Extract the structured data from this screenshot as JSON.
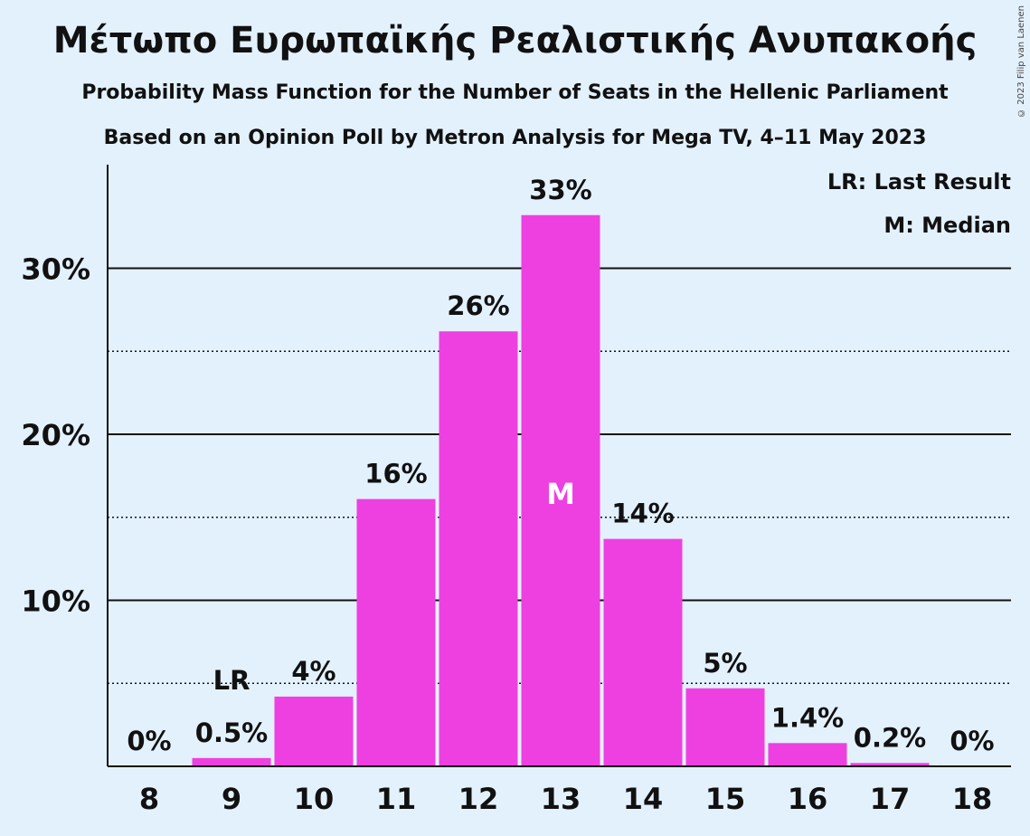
{
  "header": {
    "title": "Μέτωπο Ευρωπαϊκής Ρεαλιστικής Ανυπακοής",
    "subtitle1": "Probability Mass Function for the Number of Seats in the Hellenic Parliament",
    "subtitle2": "Based on an Opinion Poll by Metron Analysis for Mega TV, 4–11 May 2023",
    "copyright": "© 2023 Filip van Laenen"
  },
  "legend": {
    "lr": "LR: Last Result",
    "m": "M: Median"
  },
  "colors": {
    "bar": "#ee40e0",
    "background": "#e3f1fd",
    "text": "#111111"
  },
  "chart_data": {
    "type": "bar",
    "categories": [
      "8",
      "9",
      "10",
      "11",
      "12",
      "13",
      "14",
      "15",
      "16",
      "17",
      "18"
    ],
    "values": [
      0,
      0.5,
      4.2,
      16.1,
      26.2,
      33.2,
      13.7,
      4.7,
      1.4,
      0.2,
      0
    ],
    "data_labels": [
      "0%",
      "0.5%",
      "4%",
      "16%",
      "26%",
      "33%",
      "14%",
      "5%",
      "1.4%",
      "0.2%",
      "0%"
    ],
    "y_ticks": [
      {
        "value": 10,
        "label": "10%"
      },
      {
        "value": 20,
        "label": "20%"
      },
      {
        "value": 30,
        "label": "30%"
      }
    ],
    "ylim": [
      0,
      36
    ],
    "grid": {
      "major": [
        10,
        20,
        30
      ],
      "minor": [
        5,
        15,
        25
      ]
    },
    "last_result": {
      "category": "9",
      "label": "LR"
    },
    "median": {
      "category": "13",
      "label": "M"
    },
    "legend_position": "top-right"
  }
}
